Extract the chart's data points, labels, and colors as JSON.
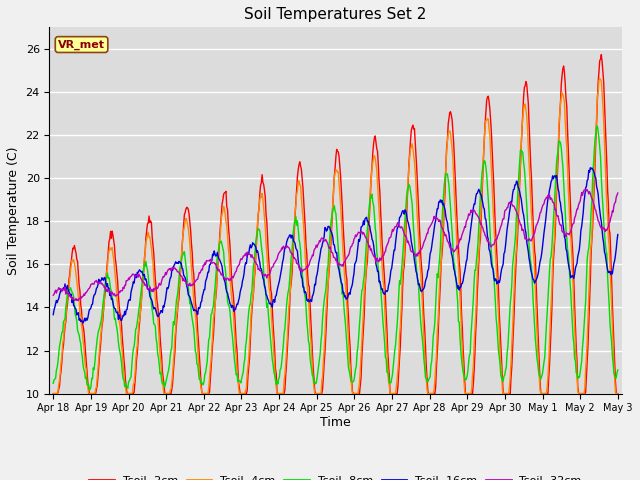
{
  "title": "Soil Temperatures Set 2",
  "xlabel": "Time",
  "ylabel": "Soil Temperature (C)",
  "ylim": [
    10,
    27
  ],
  "plot_bg_color": "#dcdcdc",
  "fig_bg_color": "#f0f0f0",
  "annotation_text": "VR_met",
  "annotation_box_color": "#ffff99",
  "annotation_text_color": "#8B0000",
  "series_colors": {
    "Tsoil -2cm": "#ff0000",
    "Tsoil -4cm": "#ff8800",
    "Tsoil -8cm": "#00dd00",
    "Tsoil -16cm": "#0000dd",
    "Tsoil -32cm": "#bb00bb"
  },
  "x_tick_labels": [
    "Apr 18",
    "Apr 19",
    "Apr 20",
    "Apr 21",
    "Apr 22",
    "Apr 23",
    "Apr 24",
    "Apr 25",
    "Apr 26",
    "Apr 27",
    "Apr 28",
    "Apr 29",
    "Apr 30",
    "May 1",
    "May 2",
    "May 3"
  ],
  "num_points": 720,
  "seed": 42
}
